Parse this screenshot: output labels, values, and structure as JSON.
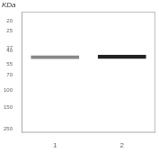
{
  "chart_data": {
    "type": "bar",
    "categories": [
      "1",
      "2"
    ],
    "values": [
      [
        44.7,
        48.3
      ],
      [
        44.0,
        48.0
      ]
    ],
    "colors": [
      "#888888",
      "#222222"
    ],
    "log": "y",
    "ylim": [
      270,
      16
    ],
    "yticks": [
      250,
      150,
      100,
      70,
      55,
      40,
      37,
      25,
      20
    ],
    "annotations": [
      "KDa"
    ],
    "grid": false
  }
}
